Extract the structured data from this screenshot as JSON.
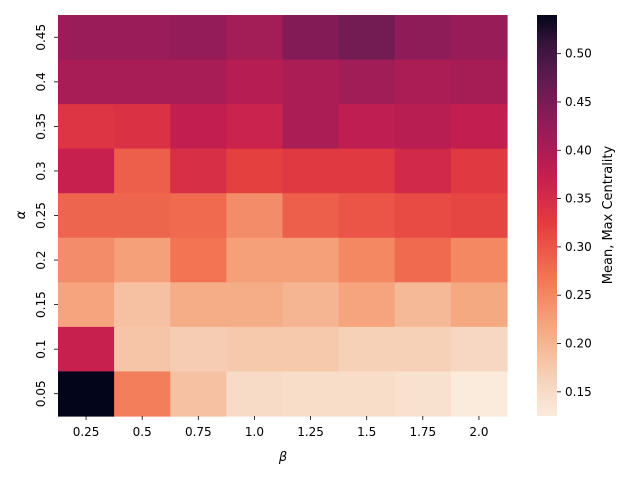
{
  "chart_data": {
    "type": "heatmap",
    "title": "",
    "xlabel": "β",
    "ylabel": "α",
    "x_categories": [
      "0.25",
      "0.5",
      "0.75",
      "1.0",
      "1.25",
      "1.5",
      "1.75",
      "2.0"
    ],
    "y_categories": [
      "0.45",
      "0.4",
      "0.35",
      "0.3",
      "0.25",
      "0.2",
      "0.15",
      "0.1",
      "0.05"
    ],
    "values": [
      [
        0.418,
        0.418,
        0.425,
        0.408,
        0.44,
        0.455,
        0.43,
        0.42
      ],
      [
        0.403,
        0.403,
        0.403,
        0.39,
        0.4,
        0.41,
        0.4,
        0.405
      ],
      [
        0.335,
        0.34,
        0.375,
        0.365,
        0.4,
        0.38,
        0.385,
        0.375
      ],
      [
        0.37,
        0.29,
        0.345,
        0.32,
        0.33,
        0.33,
        0.355,
        0.33
      ],
      [
        0.285,
        0.285,
        0.28,
        0.245,
        0.29,
        0.3,
        0.31,
        0.315
      ],
      [
        0.245,
        0.225,
        0.27,
        0.225,
        0.225,
        0.25,
        0.28,
        0.25
      ],
      [
        0.22,
        0.185,
        0.21,
        0.21,
        0.2,
        0.22,
        0.195,
        0.215
      ],
      [
        0.37,
        0.18,
        0.17,
        0.175,
        0.175,
        0.165,
        0.165,
        0.155
      ],
      [
        0.54,
        0.26,
        0.185,
        0.15,
        0.147,
        0.147,
        0.14,
        0.125
      ]
    ],
    "colorbar": {
      "label": "Mean, Max Centrality",
      "min": 0.125,
      "max": 0.54,
      "ticks": [
        "0.15",
        "0.20",
        "0.25",
        "0.30",
        "0.35",
        "0.40",
        "0.45",
        "0.50"
      ],
      "colormap": "rocket_r"
    }
  }
}
